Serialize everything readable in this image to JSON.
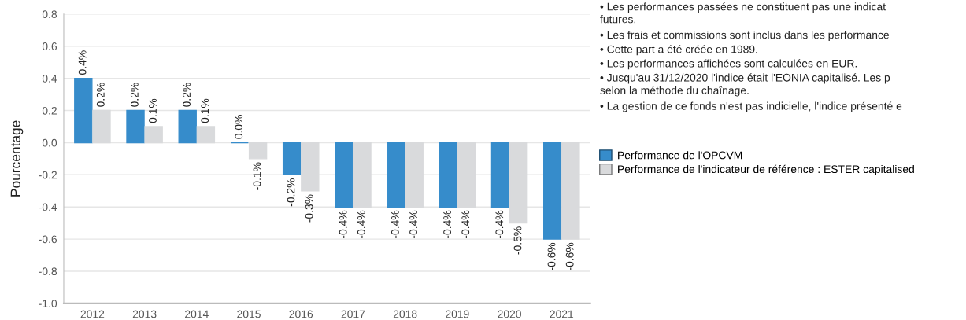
{
  "chart_data": {
    "type": "bar",
    "ylabel": "Pourcentage",
    "categories": [
      "2012",
      "2013",
      "2014",
      "2015",
      "2016",
      "2017",
      "2018",
      "2019",
      "2020",
      "2021"
    ],
    "series": [
      {
        "name": "Performance de l'OPCVM",
        "color": "#368ccb",
        "values": [
          0.4,
          0.2,
          0.2,
          0.0,
          -0.2,
          -0.4,
          -0.4,
          -0.4,
          -0.4,
          -0.6
        ],
        "value_labels": [
          "0.4%",
          "0.2%",
          "0.2%",
          "0.0%",
          "-0.2%",
          "-0.4%",
          "-0.4%",
          "-0.4%",
          "-0.4%",
          "-0.6%"
        ]
      },
      {
        "name": "Performance de l'indicateur de référence : ESTER capitalised",
        "color": "#d9dadc",
        "values": [
          0.2,
          0.1,
          0.1,
          -0.1,
          -0.3,
          -0.4,
          -0.4,
          -0.4,
          -0.5,
          -0.6
        ],
        "value_labels": [
          "0.2%",
          "0.1%",
          "0.1%",
          "-0.1%",
          "-0.3%",
          "-0.4%",
          "-0.4%",
          "-0.4%",
          "-0.5%",
          "-0.6%"
        ]
      }
    ],
    "ylim": [
      -1.0,
      0.8
    ],
    "yticks": [
      {
        "value": -1.0,
        "label": "-1.0"
      },
      {
        "value": -0.8,
        "label": "-0.8"
      },
      {
        "value": -0.6,
        "label": "-0.6"
      },
      {
        "value": -0.4,
        "label": "-0.4"
      },
      {
        "value": -0.2,
        "label": "-0.2"
      },
      {
        "value": 0,
        "label": "0.0"
      },
      {
        "value": 0.2,
        "label": "0.2"
      },
      {
        "value": 0.4,
        "label": "0.4"
      },
      {
        "value": 0.6,
        "label": "0.6"
      },
      {
        "value": 0.8,
        "label": "0.8"
      }
    ],
    "grid": "y",
    "legend": "right",
    "annotations": [
      "• Les performances passées ne constituent pas une indicat\nfutures.",
      "• Les frais et commissions sont inclus dans les performance",
      "• Cette part a été créée en 1989.",
      "• Les performances affichées sont calculées en EUR.",
      "• Jusqu'au 31/12/2020 l'indice était l'EONIA capitalisé. Les p\nselon la méthode du chaînage.",
      "• La gestion de ce fonds n'est pas indicielle, l'indice présenté e"
    ]
  }
}
